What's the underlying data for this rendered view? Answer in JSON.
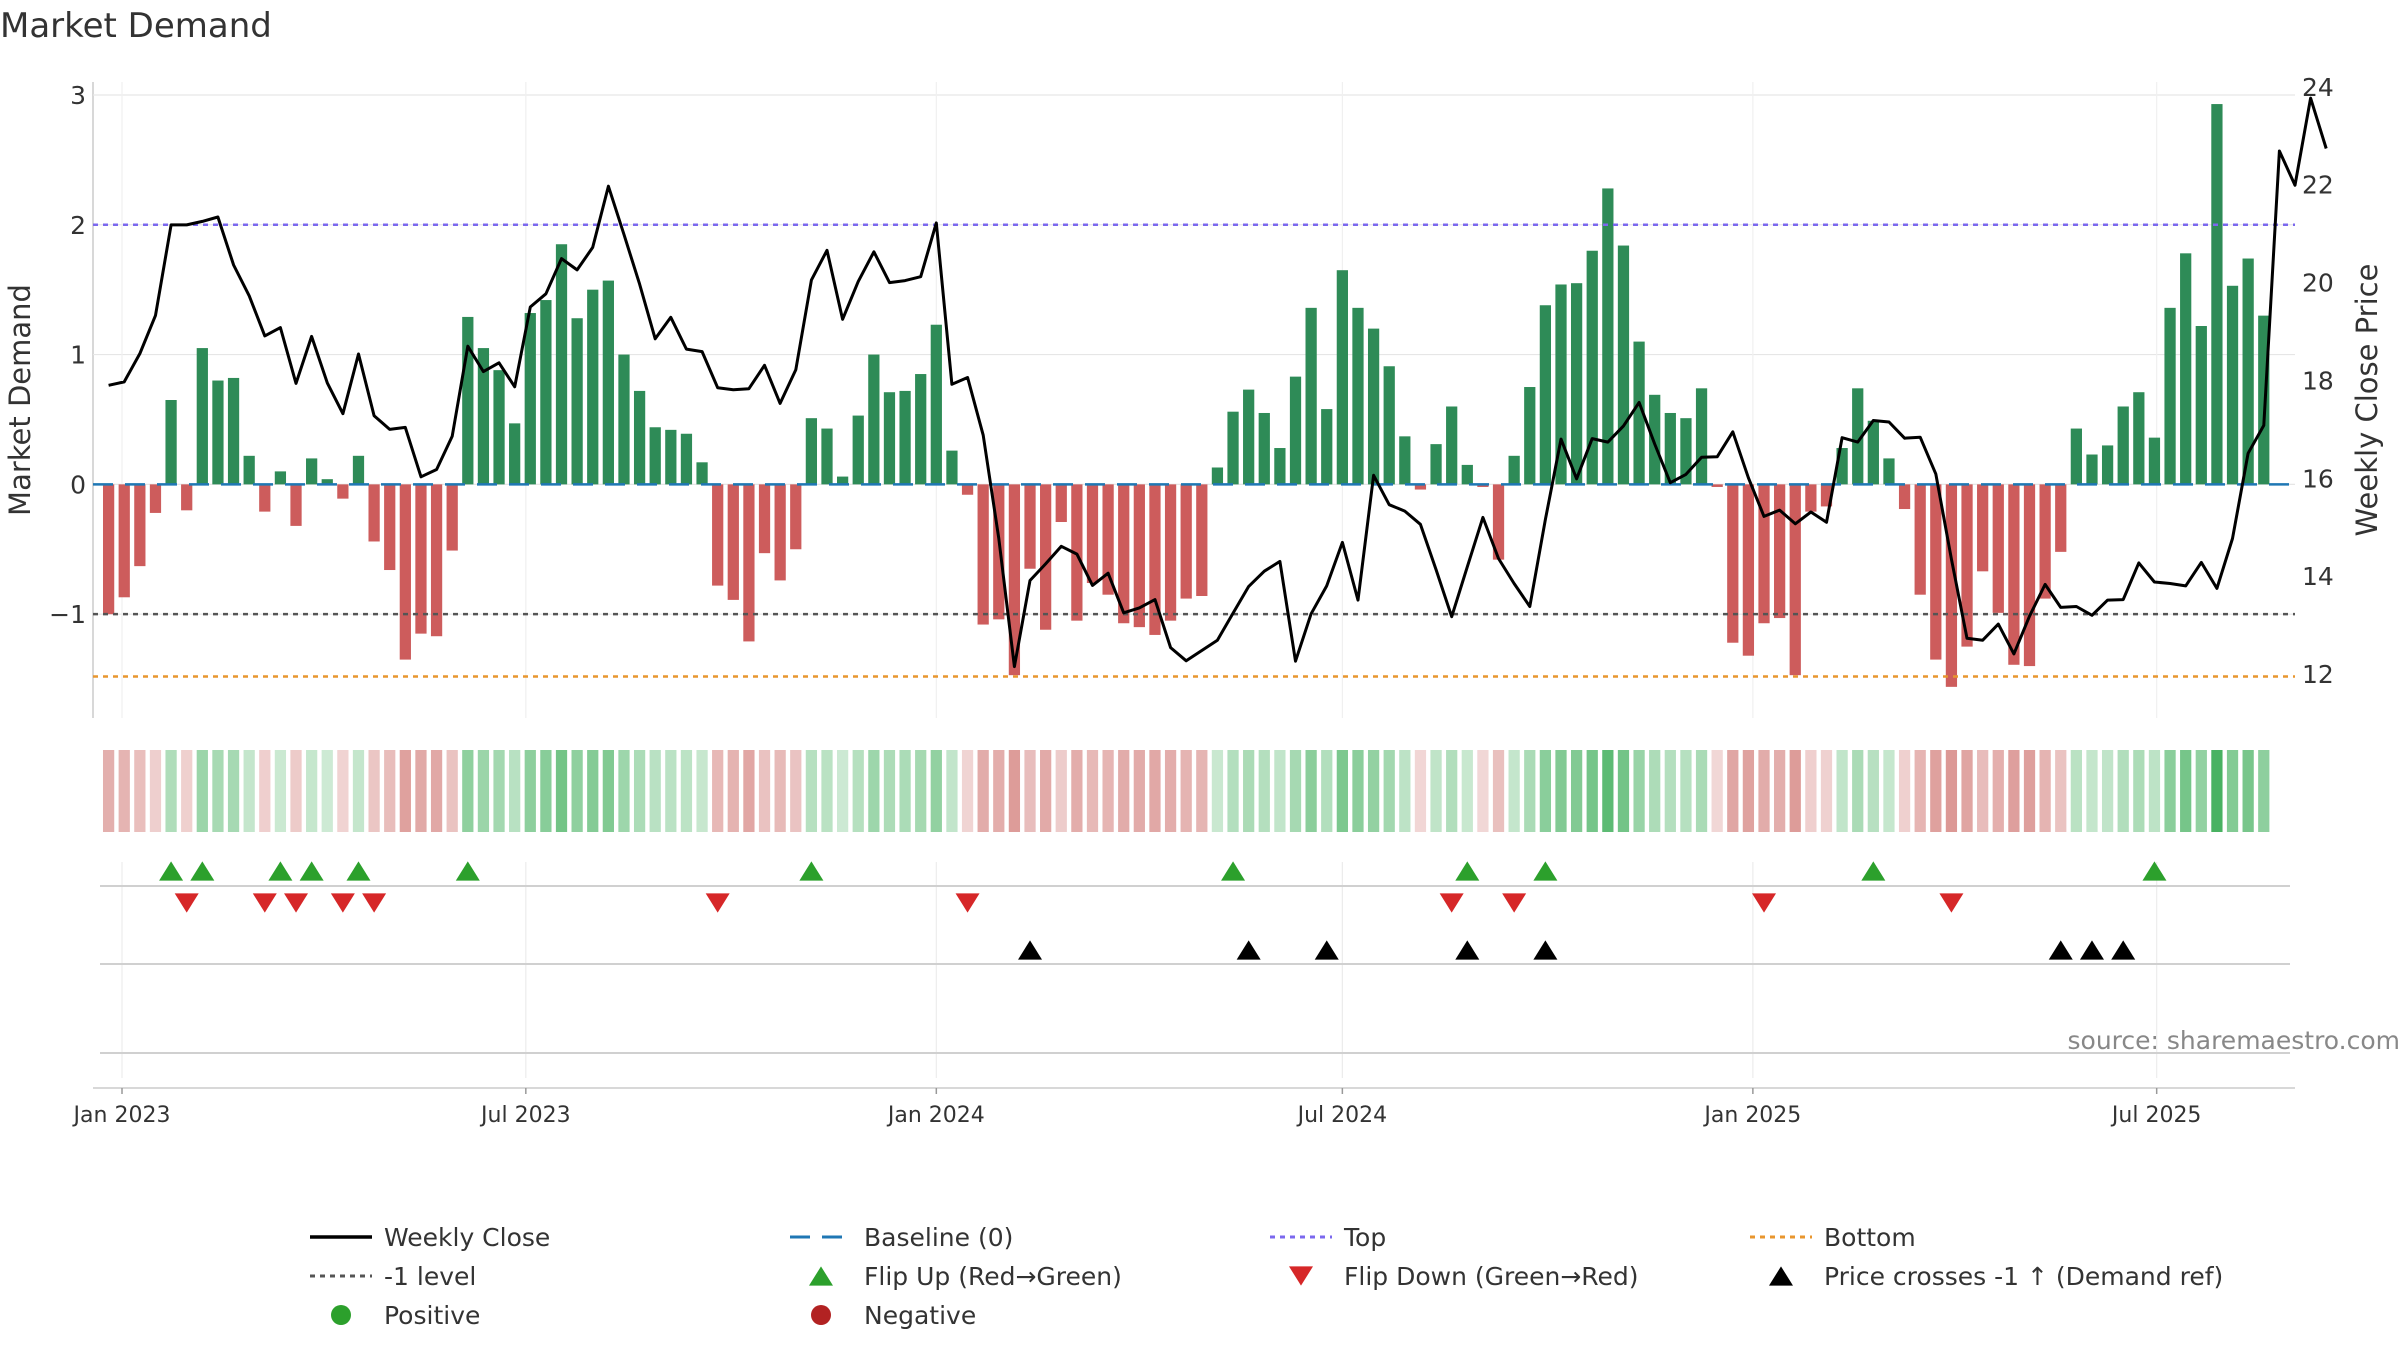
{
  "chart_data": {
    "type": "bar",
    "title": "Market Demand",
    "ylabel": "Market Demand",
    "y2label": "Weekly Close Price",
    "ylim": [
      -1.8,
      3.1
    ],
    "y2lim": [
      11.1,
      24.1
    ],
    "yticks": [
      {
        "v": 3,
        "label": "3"
      },
      {
        "v": 2,
        "label": "2"
      },
      {
        "v": 1,
        "label": "1"
      },
      {
        "v": 0,
        "label": "0"
      },
      {
        "v": -1,
        "label": "−1"
      }
    ],
    "y2ticks": [
      {
        "v": 24,
        "label": "24"
      },
      {
        "v": 22,
        "label": "22"
      },
      {
        "v": 20,
        "label": "20"
      },
      {
        "v": 18,
        "label": "18"
      },
      {
        "v": 16,
        "label": "16"
      },
      {
        "v": 14,
        "label": "14"
      },
      {
        "v": 12,
        "label": "12"
      }
    ],
    "date_range": [
      "2022-12-19",
      "2025-09-01"
    ],
    "xticks": [
      {
        "date": "2023-01-01",
        "label": "Jan 2023"
      },
      {
        "date": "2023-07-01",
        "label": "Jul 2023"
      },
      {
        "date": "2024-01-01",
        "label": "Jan 2024"
      },
      {
        "date": "2024-07-01",
        "label": "Jul 2024"
      },
      {
        "date": "2025-01-01",
        "label": "Jan 2025"
      },
      {
        "date": "2025-07-01",
        "label": "Jul 2025"
      }
    ],
    "week_start": "2022-12-26",
    "demand": [
      -1.0,
      -0.87,
      -0.63,
      -0.22,
      0.65,
      -0.2,
      1.05,
      0.8,
      0.82,
      0.22,
      -0.21,
      0.1,
      -0.32,
      0.2,
      0.04,
      -0.11,
      0.22,
      -0.44,
      -0.66,
      -1.35,
      -1.15,
      -1.17,
      -0.51,
      1.29,
      1.05,
      0.88,
      0.47,
      1.32,
      1.42,
      1.85,
      1.28,
      1.5,
      1.57,
      1.0,
      0.72,
      0.44,
      0.42,
      0.39,
      0.17,
      -0.78,
      -0.89,
      -1.21,
      -0.53,
      -0.74,
      -0.5,
      0.51,
      0.43,
      0.06,
      0.53,
      1.0,
      0.71,
      0.72,
      0.85,
      1.23,
      0.26,
      -0.08,
      -1.08,
      -1.04,
      -1.47,
      -0.65,
      -1.12,
      -0.29,
      -1.05,
      -0.76,
      -0.85,
      -1.07,
      -1.1,
      -1.16,
      -1.05,
      -0.88,
      -0.86,
      0.13,
      0.56,
      0.73,
      0.55,
      0.28,
      0.83,
      1.36,
      0.58,
      1.65,
      1.36,
      1.2,
      0.91,
      0.37,
      -0.04,
      0.31,
      0.6,
      0.15,
      -0.02,
      -0.58,
      0.22,
      0.75,
      1.38,
      1.54,
      1.55,
      1.8,
      2.28,
      1.84,
      1.1,
      0.69,
      0.55,
      0.51,
      0.74,
      -0.02,
      -1.22,
      -1.32,
      -1.07,
      -1.03,
      -1.47,
      -0.21,
      -0.17,
      0.28,
      0.74,
      0.49,
      0.2,
      -0.19,
      -0.85,
      -1.35,
      -1.56,
      -1.25,
      -0.67,
      -0.99,
      -1.39,
      -1.4,
      -0.88,
      -0.52,
      0.43,
      0.23,
      0.3,
      0.6,
      0.71,
      0.36,
      1.36,
      1.78,
      1.22,
      2.93,
      1.53,
      1.74,
      1.3
    ],
    "price": [
      17.9,
      17.97,
      18.55,
      19.33,
      21.18,
      21.18,
      21.25,
      21.34,
      20.36,
      19.73,
      18.91,
      19.08,
      17.94,
      18.9,
      17.95,
      17.32,
      18.54,
      17.28,
      17.0,
      17.04,
      16.03,
      16.18,
      16.86,
      18.7,
      18.18,
      18.36,
      17.87,
      19.5,
      19.77,
      20.49,
      20.26,
      20.72,
      21.97,
      20.98,
      19.97,
      18.85,
      19.29,
      18.64,
      18.59,
      17.85,
      17.81,
      17.83,
      18.31,
      17.53,
      18.22,
      20.05,
      20.66,
      19.25,
      20.02,
      20.63,
      20.0,
      20.04,
      20.12,
      21.22,
      17.92,
      18.06,
      16.88,
      14.77,
      12.15,
      13.91,
      14.25,
      14.61,
      14.45,
      13.81,
      14.06,
      13.25,
      13.35,
      13.52,
      12.54,
      12.27,
      12.48,
      12.69,
      13.24,
      13.79,
      14.1,
      14.3,
      12.26,
      13.23,
      13.8,
      14.69,
      13.51,
      16.06,
      15.46,
      15.33,
      15.06,
      14.13,
      13.17,
      14.19,
      15.2,
      14.36,
      13.85,
      13.38,
      15.16,
      16.8,
      15.99,
      16.81,
      16.74,
      17.07,
      17.55,
      16.7,
      15.91,
      16.08,
      16.43,
      16.44,
      16.95,
      16.01,
      15.22,
      15.35,
      15.07,
      15.31,
      15.1,
      16.83,
      16.74,
      17.18,
      17.15,
      16.82,
      16.84,
      16.09,
      14.35,
      12.73,
      12.69,
      13.02,
      12.41,
      13.18,
      13.83,
      13.36,
      13.38,
      13.2,
      13.51,
      13.52,
      14.27,
      13.88,
      13.85,
      13.8,
      14.28,
      13.75,
      14.77,
      16.51,
      17.08,
      22.69,
      21.99,
      23.77,
      22.74
    ],
    "baseline": 0,
    "top_level": 2,
    "minus1_level": -1,
    "bottom_level": -1.48,
    "colors": {
      "positive": "#2e8b57",
      "negative": "#cd5c5c",
      "line": "#000000",
      "baseline": "#1f77b4",
      "top": "#7b68ee",
      "minus1": "#555555",
      "bottom": "#e8962e",
      "flip_up": "#2ca02c",
      "flip_down": "#d62728",
      "cross": "#000000",
      "pos_dot": "#2ca02c",
      "neg_dot": "#b22222",
      "grid": "#e6e6e6",
      "axis": "#cccccc"
    },
    "flip_up_weeks": [
      4,
      6,
      11,
      13,
      16,
      23,
      45,
      72,
      87,
      92,
      113,
      131
    ],
    "flip_down_weeks": [
      5,
      10,
      12,
      15,
      17,
      39,
      55,
      86,
      90,
      106,
      118
    ],
    "price_cross_weeks": [
      59,
      73,
      78,
      87,
      92,
      125,
      127,
      129
    ],
    "source": "source: sharemaestro.com",
    "legend": [
      {
        "label": "Weekly Close",
        "marker": "line"
      },
      {
        "label": "Baseline (0)",
        "marker": "dash"
      },
      {
        "label": "Top",
        "marker": "dot-line-top"
      },
      {
        "label": "Bottom",
        "marker": "dot-line-bottom"
      },
      {
        "label": "-1 level",
        "marker": "dot-line-minus1"
      },
      {
        "label": "Flip Up (Red→Green)",
        "marker": "tri-up"
      },
      {
        "label": "Flip Down (Green→Red)",
        "marker": "tri-down"
      },
      {
        "label": "Price crosses -1 ↑ (Demand ref)",
        "marker": "tri-up-black"
      },
      {
        "label": "Positive",
        "marker": "dot-pos"
      },
      {
        "label": "Negative",
        "marker": "dot-neg"
      }
    ]
  }
}
